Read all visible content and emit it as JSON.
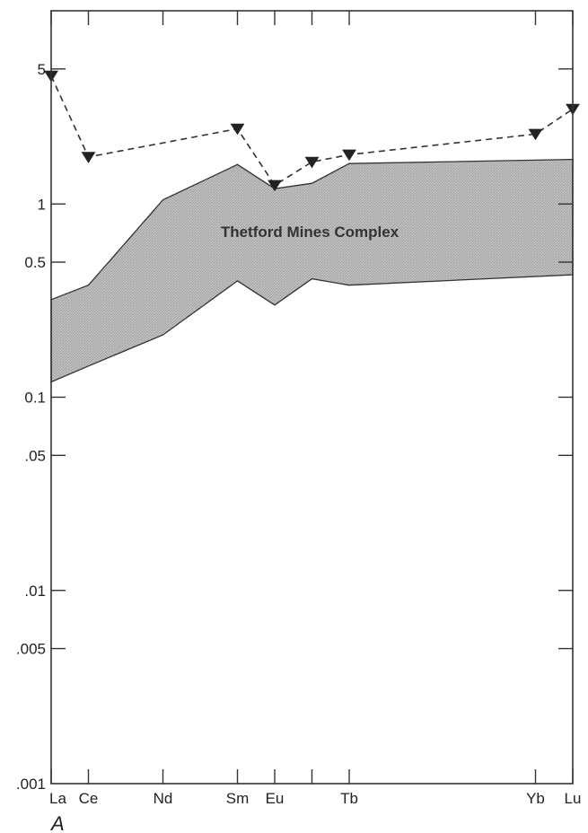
{
  "chart_data": {
    "type": "line",
    "y_scale": "log",
    "ylim": [
      0.001,
      10
    ],
    "y_ticks": [
      {
        "value": 5,
        "label": "5"
      },
      {
        "value": 1,
        "label": "1"
      },
      {
        "value": 0.5,
        "label": "0.5"
      },
      {
        "value": 0.1,
        "label": "0.1"
      },
      {
        "value": 0.05,
        "label": ".05"
      },
      {
        "value": 0.01,
        "label": ".01"
      },
      {
        "value": 0.005,
        "label": ".005"
      },
      {
        "value": 0.001,
        "label": ".001"
      }
    ],
    "x_ticks": [
      {
        "x": 57,
        "label": "La"
      },
      {
        "x": 58,
        "label": "Ce"
      },
      {
        "x": 60,
        "label": "Nd"
      },
      {
        "x": 62,
        "label": "Sm"
      },
      {
        "x": 63,
        "label": "Eu"
      },
      {
        "x": 64,
        "label": ""
      },
      {
        "x": 65,
        "label": "Tb"
      },
      {
        "x": 70,
        "label": "Yb"
      },
      {
        "x": 71,
        "label": "Lu"
      }
    ],
    "xlim": [
      57,
      71
    ],
    "band": {
      "label": "Thetford Mines Complex",
      "upper": [
        {
          "x": 57,
          "y": 0.32
        },
        {
          "x": 58,
          "y": 0.38
        },
        {
          "x": 60,
          "y": 1.05
        },
        {
          "x": 62,
          "y": 1.6
        },
        {
          "x": 63,
          "y": 1.2
        },
        {
          "x": 64,
          "y": 1.28
        },
        {
          "x": 65,
          "y": 1.62
        },
        {
          "x": 71,
          "y": 1.7
        }
      ],
      "lower": [
        {
          "x": 57,
          "y": 0.12
        },
        {
          "x": 58,
          "y": 0.145
        },
        {
          "x": 60,
          "y": 0.21
        },
        {
          "x": 62,
          "y": 0.4
        },
        {
          "x": 63,
          "y": 0.3
        },
        {
          "x": 64,
          "y": 0.41
        },
        {
          "x": 65,
          "y": 0.38
        },
        {
          "x": 71,
          "y": 0.43
        }
      ]
    },
    "series": [
      {
        "marker": "triangle-down",
        "line_style": "dashed",
        "points": [
          {
            "x": 57,
            "y": 4.6
          },
          {
            "x": 58,
            "y": 1.75
          },
          {
            "x": 62,
            "y": 2.45
          },
          {
            "x": 63,
            "y": 1.25
          },
          {
            "x": 64,
            "y": 1.65
          },
          {
            "x": 65,
            "y": 1.8
          },
          {
            "x": 70,
            "y": 2.3
          },
          {
            "x": 71,
            "y": 3.1
          }
        ]
      }
    ],
    "panel_label": "A"
  },
  "colors": {
    "band_fill": "#c4c4c4",
    "line": "#333333",
    "axis": "#333333"
  }
}
